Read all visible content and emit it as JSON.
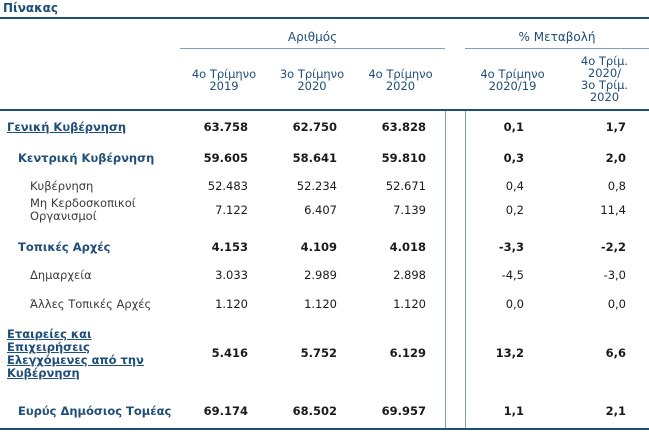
{
  "title": "Πίνακας",
  "groups": {
    "number": "Αριθμός",
    "change": "% Μεταβολή"
  },
  "columns": [
    [
      "4ο Τρίμηνο",
      "2019"
    ],
    [
      "3ο Τρίμηνο",
      "2020"
    ],
    [
      "4ο Τρίμηνο",
      "2020"
    ],
    [
      "4ο Τρίμηνο",
      "2020/19"
    ],
    [
      "4ο Τρίμ.",
      "2020/",
      "3ο Τρίμ.",
      "2020"
    ]
  ],
  "rows": [
    {
      "label": [
        "Γενική Κυβέρνηση"
      ],
      "style": "link",
      "values": [
        "63.758",
        "62.750",
        "63.828"
      ],
      "changes": [
        "0,1",
        "1,7"
      ]
    },
    {
      "label": [
        "Κεντρική Κυβέρνηση"
      ],
      "style": "bold",
      "values": [
        "59.605",
        "58.641",
        "59.810"
      ],
      "changes": [
        "0,3",
        "2,0"
      ]
    },
    {
      "label": [
        "Κυβέρνηση"
      ],
      "style": "normal",
      "values": [
        "52.483",
        "52.234",
        "52.671"
      ],
      "changes": [
        "0,4",
        "0,8"
      ]
    },
    {
      "label": [
        "Μη Κερδοσκοπικοί",
        "Οργανισμοί"
      ],
      "style": "normal",
      "values": [
        "7.122",
        "6.407",
        "7.139"
      ],
      "changes": [
        "0,2",
        "11,4"
      ]
    },
    {
      "label": [
        "Τοπικές Αρχές"
      ],
      "style": "bold",
      "values": [
        "4.153",
        "4.109",
        "4.018"
      ],
      "changes": [
        "-3,3",
        "-2,2"
      ]
    },
    {
      "label": [
        "Δημαρχεία"
      ],
      "style": "normal",
      "values": [
        "3.033",
        "2.989",
        "2.898"
      ],
      "changes": [
        "-4,5",
        "-3,0"
      ]
    },
    {
      "label": [
        "Άλλες Τοπικές Αρχές"
      ],
      "style": "normal",
      "values": [
        "1.120",
        "1.120",
        "1.120"
      ],
      "changes": [
        "0,0",
        "0,0"
      ]
    },
    {
      "label": [
        "Εταιρείες και",
        "Επιχειρήσεις",
        "Ελεγχόμενες από την",
        "Κυβέρνηση"
      ],
      "style": "link",
      "values": [
        "5.416",
        "5.752",
        "6.129"
      ],
      "changes": [
        "13,2",
        "6,6"
      ]
    },
    {
      "label": [
        "Ευρύς Δημόσιος Τομέας"
      ],
      "style": "bold",
      "values": [
        "69.174",
        "68.502",
        "69.957"
      ],
      "changes": [
        "1,1",
        "2,1"
      ]
    }
  ]
}
